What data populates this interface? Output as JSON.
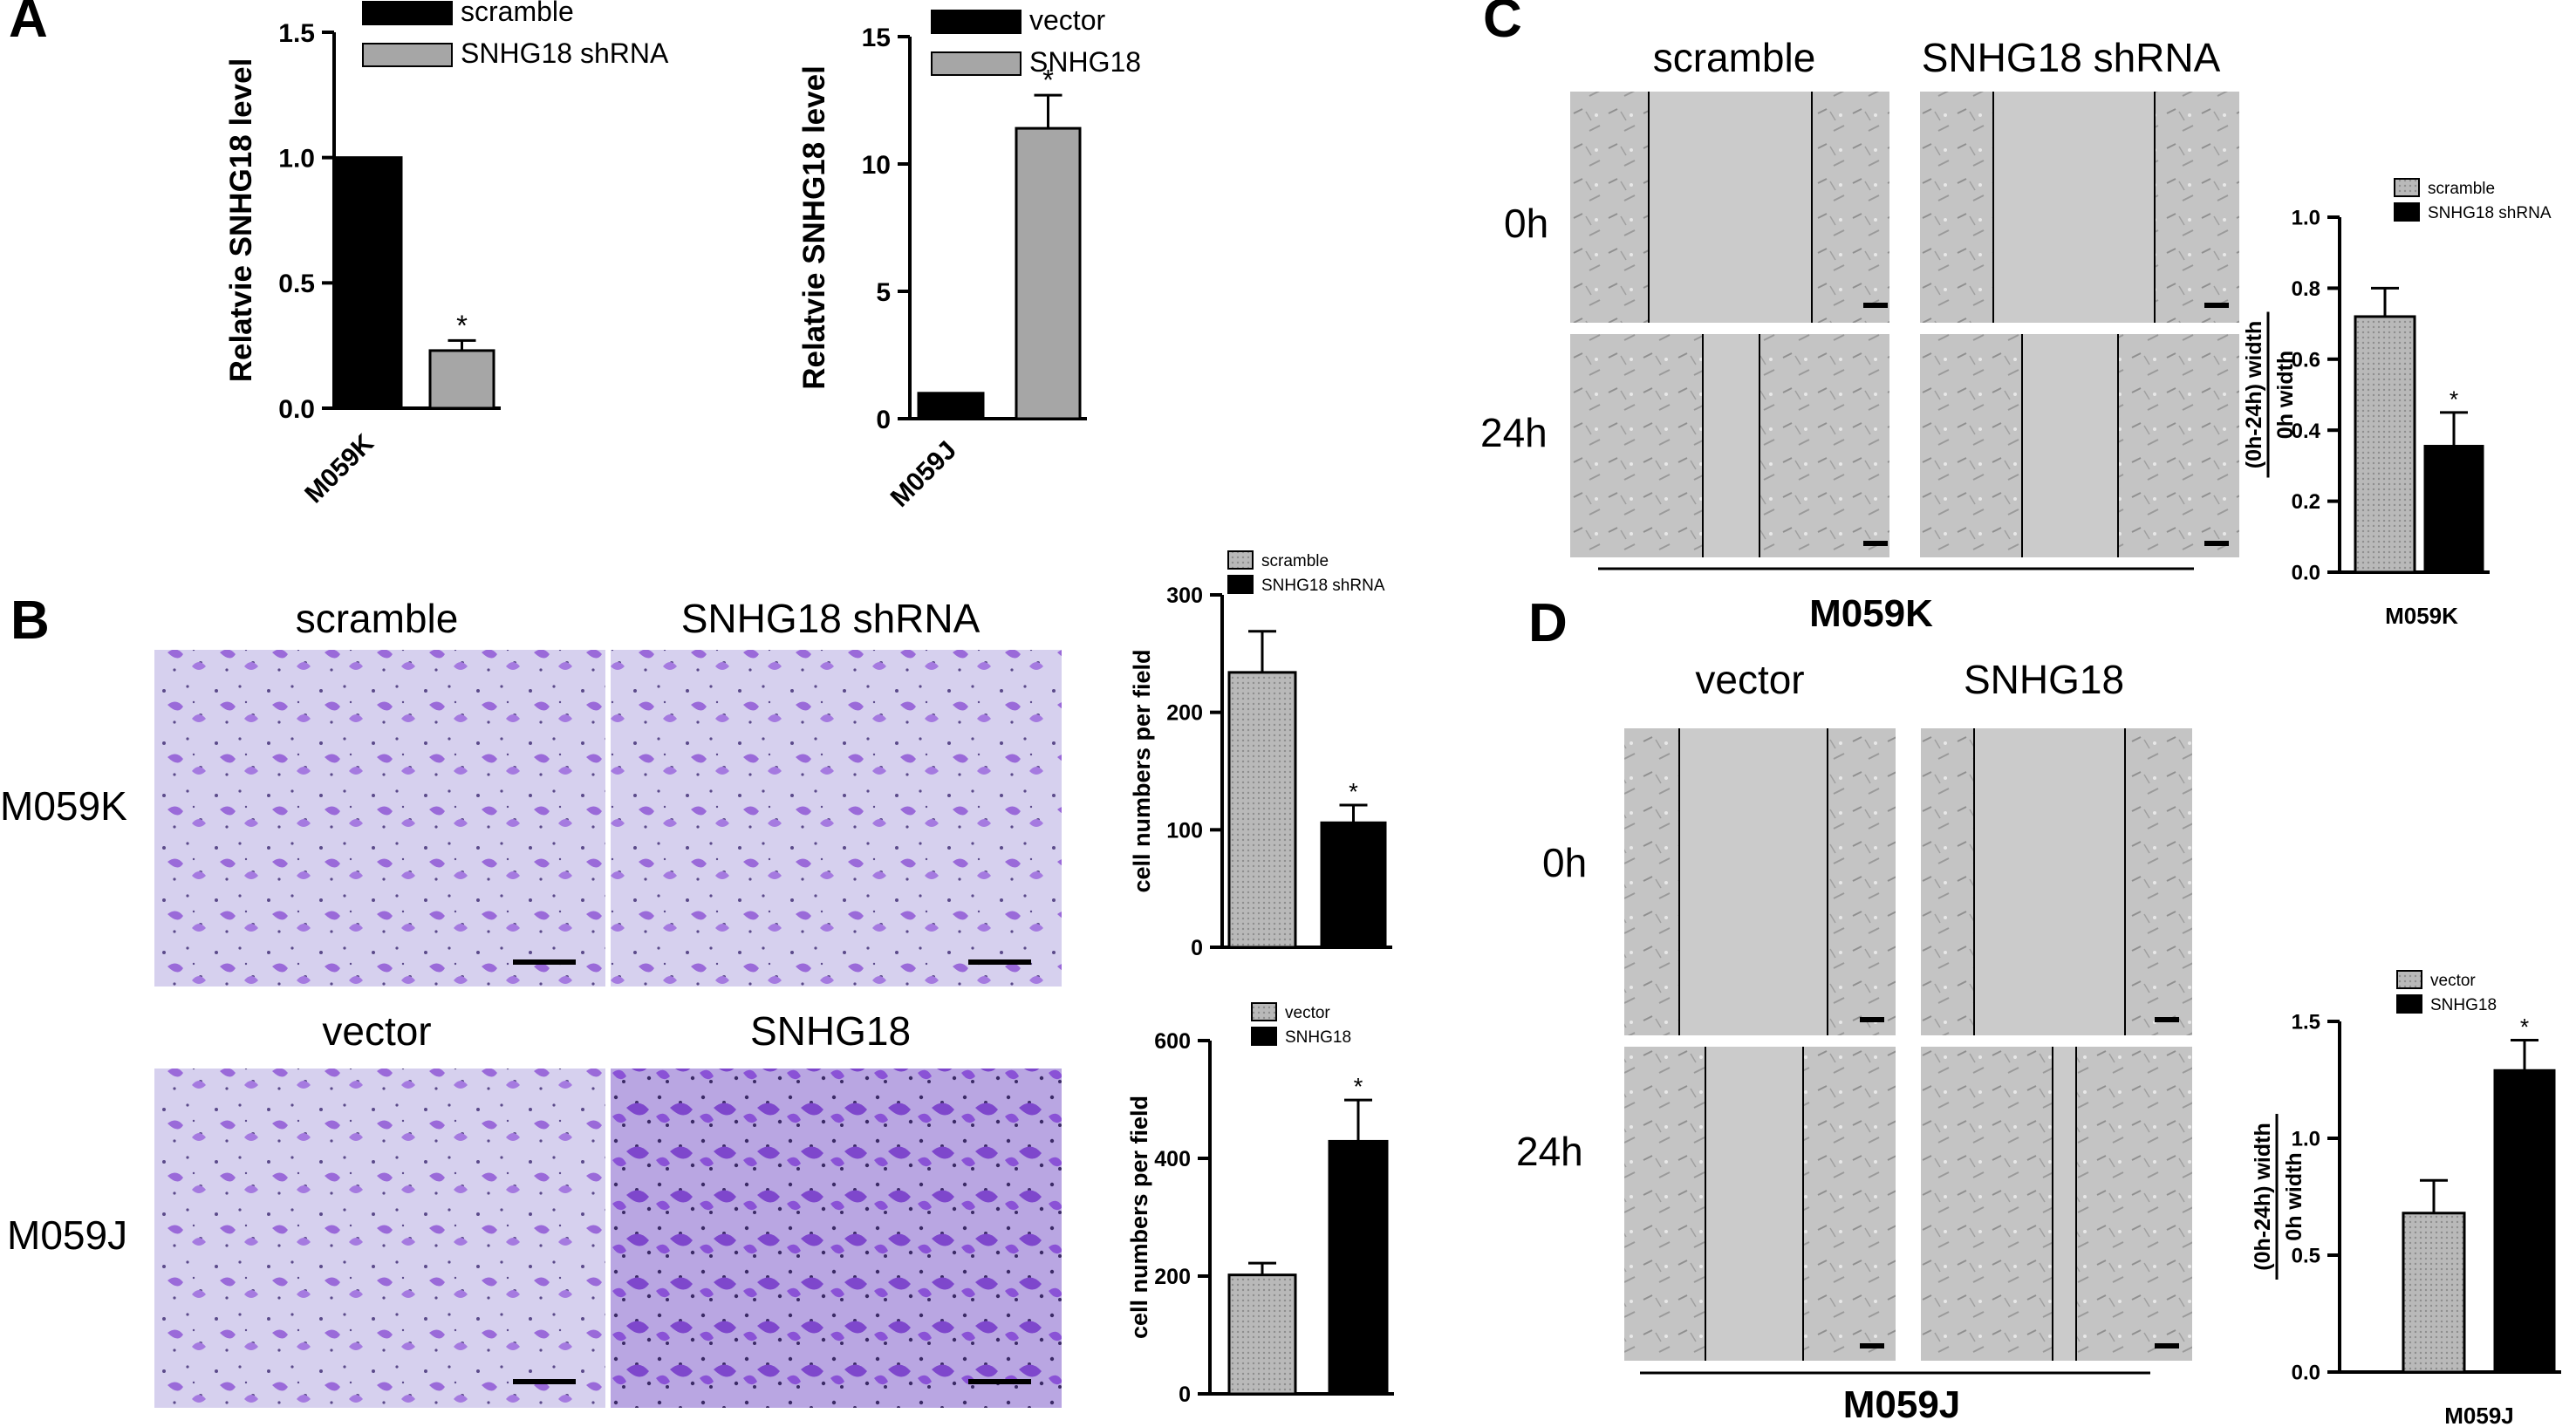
{
  "panels": {
    "A": "A",
    "B": "B",
    "C": "C",
    "D": "D"
  },
  "panel_b": {
    "col_headers": [
      "scramble",
      "SNHG18 shRNA",
      "vector",
      "SNHG18"
    ],
    "row_labels": [
      "M059K",
      "M059J"
    ]
  },
  "panel_c": {
    "col_headers": [
      "scramble",
      "SNHG18 shRNA"
    ],
    "row_labels": [
      "0h",
      "24h"
    ],
    "cell_line": "M059K"
  },
  "panel_d": {
    "col_headers": [
      "vector",
      "SNHG18"
    ],
    "row_labels": [
      "0h",
      "24h"
    ],
    "cell_line": "M059J"
  },
  "colors": {
    "black": "#000000",
    "gray_bar": "#a6a6a6",
    "dotted_gray": "#b3b3b3",
    "stain_purple": "#8a5cd0",
    "stain_background": "#cfc9ea",
    "phase_contrast": "#bdbdbd"
  },
  "chart_data": [
    {
      "id": "A1",
      "type": "bar",
      "categories": [
        "M059K"
      ],
      "series": [
        {
          "name": "scramble",
          "values": [
            1.0
          ],
          "errors": [
            0
          ],
          "color": "#000000",
          "significant": [
            false
          ]
        },
        {
          "name": "SNHG18  shRNA",
          "values": [
            0.23
          ],
          "errors": [
            0.04
          ],
          "color": "#a6a6a6",
          "significant": [
            true
          ]
        }
      ],
      "ylabel": "Relatvie SNHG18 level",
      "ylim": [
        0,
        1.5
      ],
      "yticks": [
        "0.0",
        "0.5",
        "1.0",
        "1.5"
      ],
      "legend": "top"
    },
    {
      "id": "A2",
      "type": "bar",
      "categories": [
        "M059J"
      ],
      "series": [
        {
          "name": "vector",
          "values": [
            1.0
          ],
          "errors": [
            0
          ],
          "color": "#000000",
          "significant": [
            false
          ]
        },
        {
          "name": "SNHG18",
          "values": [
            11.4
          ],
          "errors": [
            1.3
          ],
          "color": "#a6a6a6",
          "significant": [
            true
          ]
        }
      ],
      "ylabel": "Relatvie SNHG18 level",
      "ylim": [
        0,
        15
      ],
      "yticks": [
        "0",
        "5",
        "10",
        "15"
      ],
      "legend": "top"
    },
    {
      "id": "B1",
      "type": "bar",
      "categories": [
        ""
      ],
      "series": [
        {
          "name": "scramble",
          "values": [
            234
          ],
          "errors": [
            35
          ],
          "color": "#b3b3b3",
          "significant": [
            false
          ]
        },
        {
          "name": "SNHG18 shRNA",
          "values": [
            106
          ],
          "errors": [
            15
          ],
          "color": "#000000",
          "significant": [
            true
          ]
        }
      ],
      "ylabel": "cell numbers per field",
      "ylim": [
        0,
        300
      ],
      "yticks": [
        "0",
        "100",
        "200",
        "300"
      ],
      "legend": "top"
    },
    {
      "id": "B2",
      "type": "bar",
      "categories": [
        ""
      ],
      "series": [
        {
          "name": "vector",
          "values": [
            202
          ],
          "errors": [
            20
          ],
          "color": "#b3b3b3",
          "significant": [
            false
          ]
        },
        {
          "name": "SNHG18",
          "values": [
            429
          ],
          "errors": [
            70
          ],
          "color": "#000000",
          "significant": [
            true
          ]
        }
      ],
      "ylabel": "cell numbers per field",
      "ylim": [
        0,
        600
      ],
      "yticks": [
        "0",
        "200",
        "400",
        "600"
      ],
      "legend": "top"
    },
    {
      "id": "C",
      "type": "bar",
      "categories": [
        "M059K"
      ],
      "series": [
        {
          "name": "scramble",
          "values": [
            0.72
          ],
          "errors": [
            0.08
          ],
          "color": "#b3b3b3",
          "significant": [
            false
          ]
        },
        {
          "name": "SNHG18 shRNA",
          "values": [
            0.355
          ],
          "errors": [
            0.095
          ],
          "color": "#000000",
          "significant": [
            true
          ]
        }
      ],
      "ylabel_top": "(0h-24h) width",
      "ylabel_bottom": "0h width",
      "ylim": [
        0,
        1.0
      ],
      "yticks": [
        "0.0",
        "0.2",
        "0.4",
        "0.6",
        "0.8",
        "1.0"
      ],
      "legend": "top"
    },
    {
      "id": "D",
      "type": "bar",
      "categories": [
        "M059J"
      ],
      "series": [
        {
          "name": "vector",
          "values": [
            0.68
          ],
          "errors": [
            0.14
          ],
          "color": "#b3b3b3",
          "significant": [
            false
          ]
        },
        {
          "name": "SNHG18",
          "values": [
            1.29
          ],
          "errors": [
            0.13
          ],
          "color": "#000000",
          "significant": [
            true
          ]
        }
      ],
      "ylabel_top": "(0h-24h) width",
      "ylabel_bottom": "0h width",
      "ylim": [
        0,
        1.5
      ],
      "yticks": [
        "0.0",
        "0.5",
        "1.0",
        "1.5"
      ],
      "legend": "top"
    }
  ]
}
